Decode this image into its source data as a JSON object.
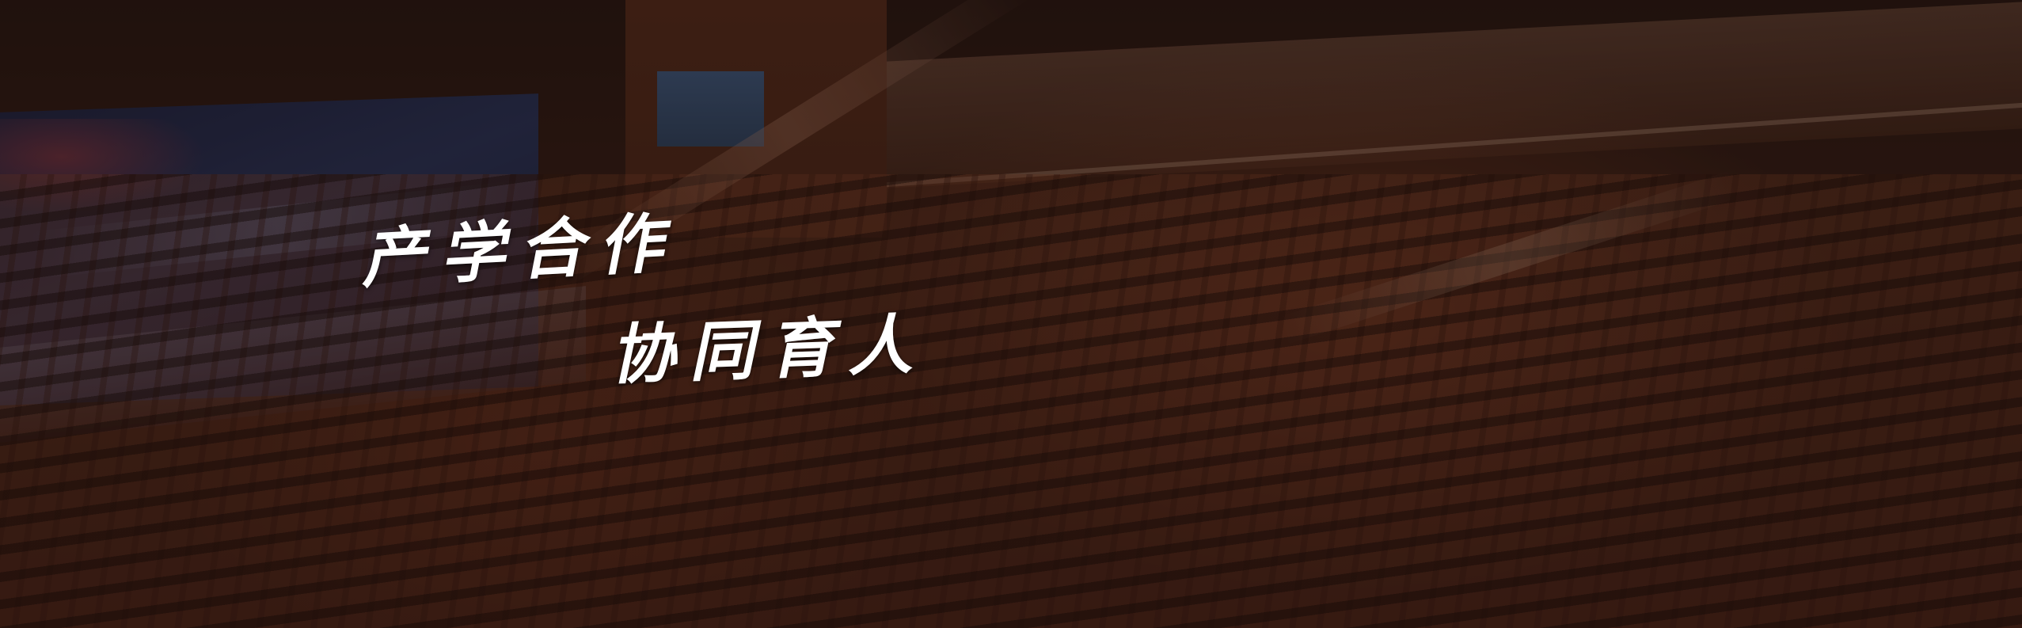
{
  "slogan": {
    "line1": "产学合作",
    "line2": "协同育人"
  },
  "scene": {
    "description_icon": "auditorium-background",
    "overlay_color": "#140a08"
  }
}
